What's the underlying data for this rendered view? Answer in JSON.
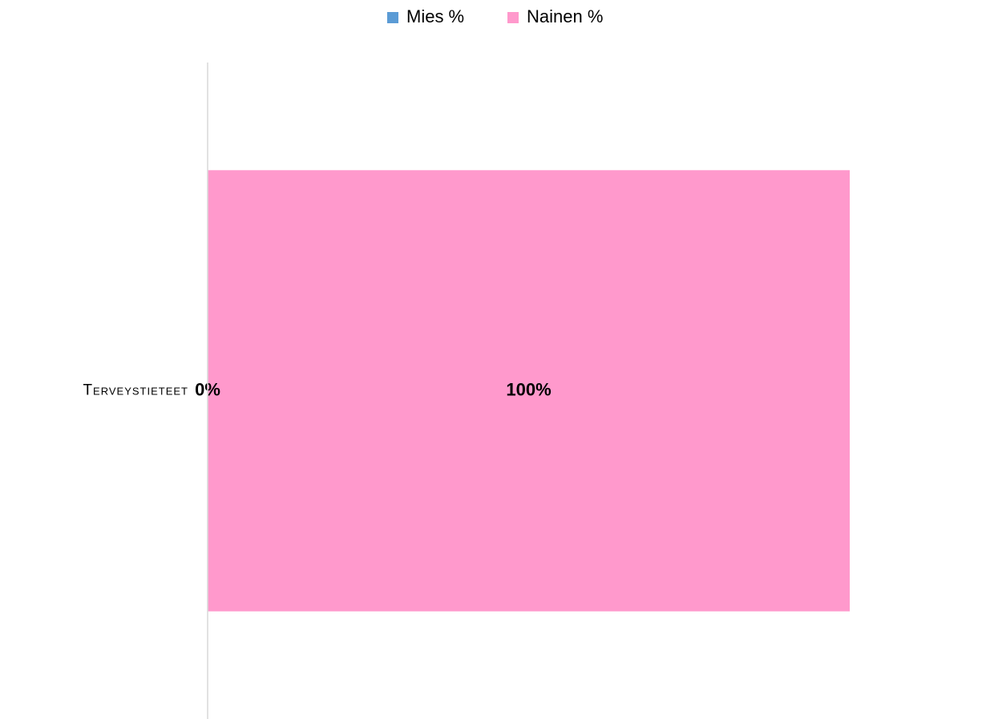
{
  "chart_data": {
    "type": "stacked_barh",
    "categories": [
      "Terveystieteet"
    ],
    "series": [
      {
        "name": "Mies %",
        "color": "#5b9bd5",
        "values": [
          0
        ],
        "value_labels": [
          "0%"
        ]
      },
      {
        "name": "Nainen %",
        "color": "#ff99cc",
        "values": [
          100
        ],
        "value_labels": [
          "100%"
        ]
      }
    ],
    "xlim": [
      0,
      100
    ],
    "legend": "top"
  }
}
